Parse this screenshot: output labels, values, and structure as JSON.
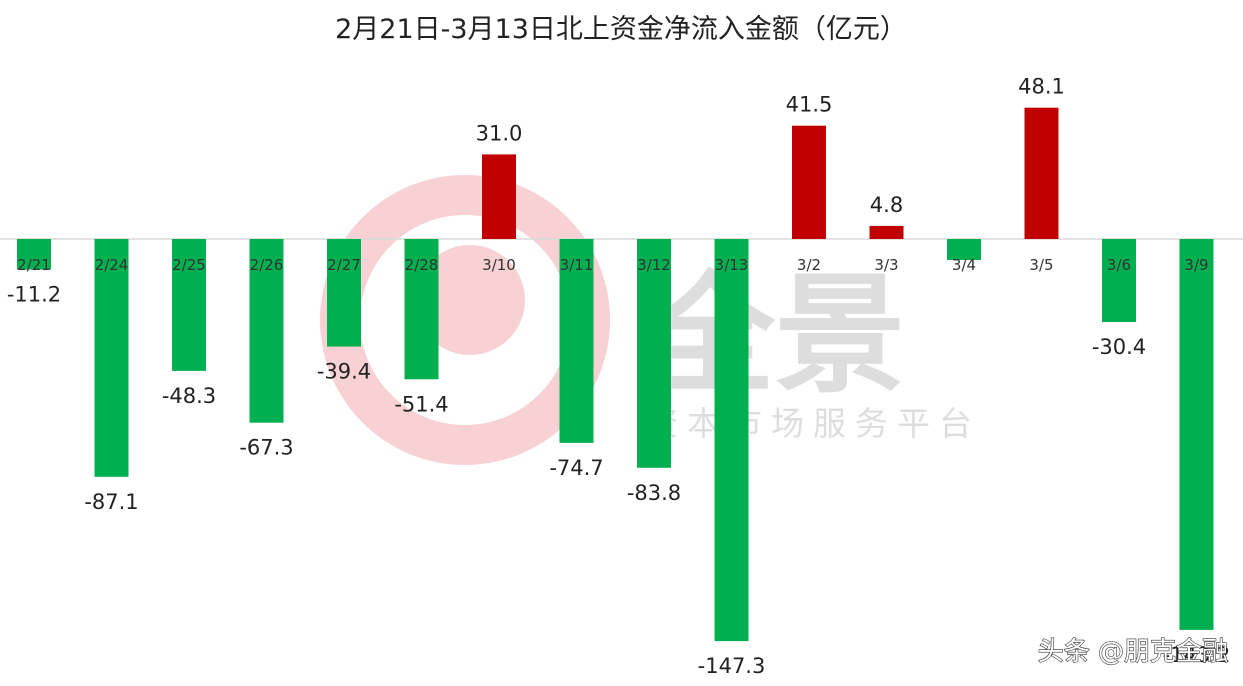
{
  "chart_data": {
    "type": "bar",
    "title": "2月21日-3月13日北上资金净流入金额（亿元）",
    "xlabel": "",
    "ylabel": "",
    "categories": [
      "2/21",
      "2/24",
      "2/25",
      "2/26",
      "2/27",
      "2/28",
      "3/10",
      "3/11",
      "3/12",
      "3/13",
      "3/2",
      "3/3",
      "3/4",
      "3/5",
      "3/6",
      "3/9"
    ],
    "values": [
      -11.2,
      -87.1,
      -48.3,
      -67.3,
      -39.4,
      -51.4,
      31.0,
      -74.7,
      -83.8,
      -147.3,
      41.5,
      4.8,
      -7.7,
      48.1,
      -30.4,
      -143.2
    ],
    "data_labels": [
      "-11.2",
      "-87.1",
      "-48.3",
      "-67.3",
      "-39.4",
      "-51.4",
      "31.0",
      "-74.7",
      "-83.8",
      "-147.3",
      "41.5",
      "4.8",
      "",
      "48.1",
      "-30.4",
      "-143.2"
    ],
    "ylim": [
      -150,
      60
    ],
    "grid": false,
    "legend": "none",
    "colors": {
      "positive": "#c00000",
      "negative": "#00b050",
      "axis": "#d9d9d9"
    }
  },
  "watermark": {
    "logo_text": "全景",
    "tagline": "资本市场服务平台"
  },
  "credit": "头条 @朋克金融"
}
